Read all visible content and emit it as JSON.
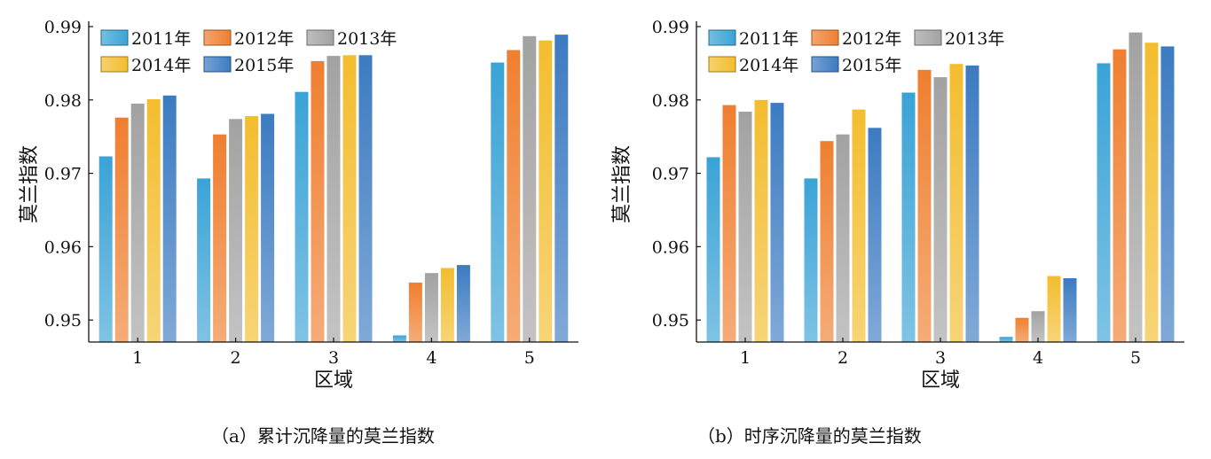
{
  "colors": {
    "2011年": "#3aa3d6",
    "2012年": "#ef7f30",
    "2013年": "#a2a2a2",
    "2014年": "#f3bd2e",
    "2015年": "#3c7bc1"
  },
  "chart_data": [
    {
      "type": "bar",
      "caption": "（a）累计沉降量的莫兰指数",
      "xlabel": "区域",
      "ylabel": "莫兰指数",
      "categories": [
        "1",
        "2",
        "3",
        "4",
        "5"
      ],
      "ylim": [
        0.947,
        0.99
      ],
      "yticks": [
        "0.95",
        "0.96",
        "0.97",
        "0.98",
        "0.99"
      ],
      "legend_position": "top-left",
      "series": [
        {
          "name": "2011年",
          "values": [
            0.9723,
            0.9693,
            0.9811,
            0.9479,
            0.9851
          ]
        },
        {
          "name": "2012年",
          "values": [
            0.9776,
            0.9753,
            0.9853,
            0.9551,
            0.9868
          ]
        },
        {
          "name": "2013年",
          "values": [
            0.9795,
            0.9774,
            0.986,
            0.9564,
            0.9887
          ]
        },
        {
          "name": "2014年",
          "values": [
            0.9801,
            0.9778,
            0.9861,
            0.9571,
            0.9881
          ]
        },
        {
          "name": "2015年",
          "values": [
            0.9806,
            0.9781,
            0.9861,
            0.9575,
            0.9889
          ]
        }
      ]
    },
    {
      "type": "bar",
      "caption": "（b）时序沉降量的莫兰指数",
      "xlabel": "区域",
      "ylabel": "莫兰指数",
      "categories": [
        "1",
        "2",
        "3",
        "4",
        "5"
      ],
      "ylim": [
        0.947,
        0.99
      ],
      "yticks": [
        "0.95",
        "0.96",
        "0.97",
        "0.98",
        "0.99"
      ],
      "legend_position": "top-left",
      "series": [
        {
          "name": "2011年",
          "values": [
            0.9722,
            0.9693,
            0.981,
            0.9477,
            0.985
          ]
        },
        {
          "name": "2012年",
          "values": [
            0.9793,
            0.9744,
            0.9841,
            0.9503,
            0.9869
          ]
        },
        {
          "name": "2013年",
          "values": [
            0.9784,
            0.9753,
            0.9831,
            0.9512,
            0.9892
          ]
        },
        {
          "name": "2014年",
          "values": [
            0.98,
            0.9787,
            0.9849,
            0.956,
            0.9878
          ]
        },
        {
          "name": "2015年",
          "values": [
            0.9796,
            0.9762,
            0.9847,
            0.9557,
            0.9873
          ]
        }
      ]
    }
  ]
}
